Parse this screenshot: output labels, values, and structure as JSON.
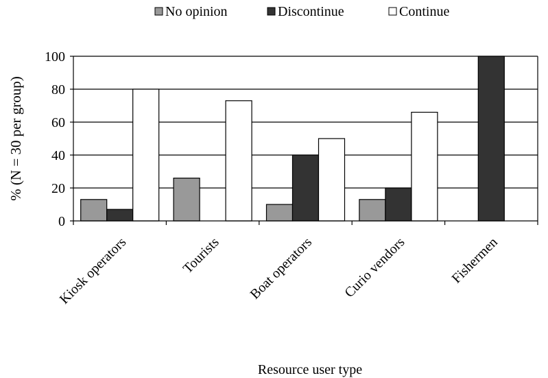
{
  "chart_data": {
    "type": "bar",
    "title": "",
    "xlabel": "Resource user type",
    "ylabel": "% (N = 30 per group)",
    "ylim": [
      0,
      100
    ],
    "yticks": [
      0,
      20,
      40,
      60,
      80,
      100
    ],
    "grid": true,
    "legend_position": "top-center",
    "categories": [
      "Kiosk operators",
      "Tourists",
      "Boat operators",
      "Curio vendors",
      "Fishermen"
    ],
    "series": [
      {
        "name": "No opinion",
        "color": "#999999",
        "values": [
          13,
          26,
          10,
          13,
          0
        ]
      },
      {
        "name": "Discontinue",
        "color": "#333333",
        "values": [
          7,
          0,
          40,
          20,
          100
        ]
      },
      {
        "name": "Continue",
        "color": "#ffffff",
        "values": [
          80,
          73,
          50,
          66,
          0
        ]
      }
    ]
  }
}
